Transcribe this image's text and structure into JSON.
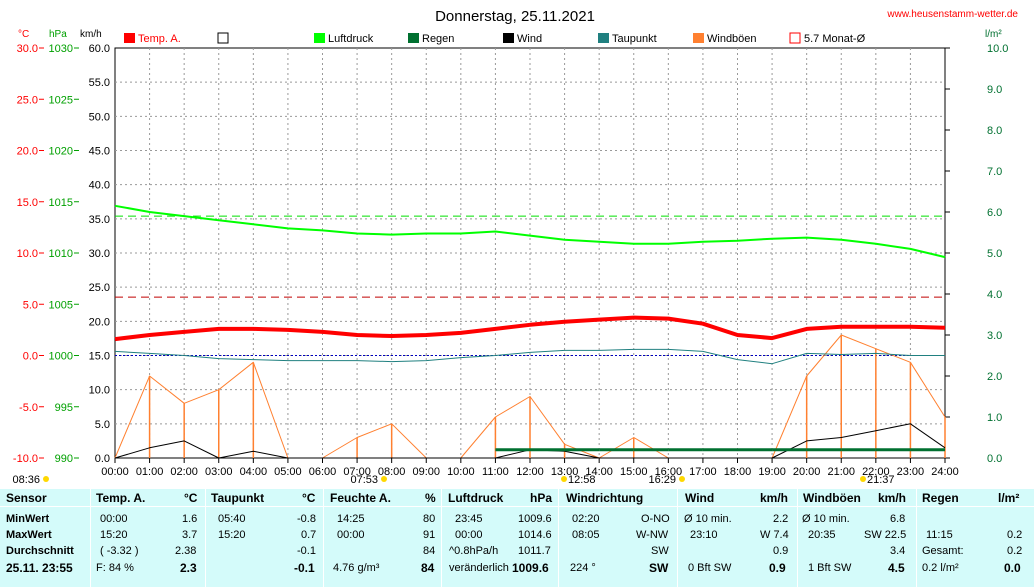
{
  "title": "Donnerstag, 25.11.2021",
  "site": "www.heusenstamm-wetter.de",
  "units": {
    "temp": "°C",
    "press": "hPa",
    "wind": "km/h",
    "rain": "l/m²"
  },
  "legend": [
    {
      "label": "Temp. A.",
      "color": "#ff0000"
    },
    {
      "label": "",
      "color": "#ffffff"
    },
    {
      "label": "Luftdruck",
      "color": "#00ff00"
    },
    {
      "label": "Regen",
      "color": "#007030"
    },
    {
      "label": "Wind",
      "color": "#000000"
    },
    {
      "label": "Taupunkt",
      "color": "#208080"
    },
    {
      "label": "Windböen",
      "color": "#ff8030"
    },
    {
      "label": "5.7 Monat-Ø",
      "color": "#ff0000"
    }
  ],
  "axes": {
    "temp_ticks": [
      "30.0",
      "25.0",
      "20.0",
      "15.0",
      "10.0",
      "5.0",
      "0.0",
      "-5.0",
      "-10.0"
    ],
    "press_ticks": [
      "1030",
      "1025",
      "1020",
      "1015",
      "1010",
      "1005",
      "1000",
      "995",
      "990"
    ],
    "wind_ticks": [
      "60.0",
      "55.0",
      "50.0",
      "45.0",
      "40.0",
      "35.0",
      "30.0",
      "25.0",
      "20.0",
      "15.0",
      "10.0",
      "5.0",
      "0.0"
    ],
    "rain_ticks": [
      "10.0",
      "9.0",
      "8.0",
      "7.0",
      "6.0",
      "5.0",
      "4.0",
      "3.0",
      "2.0",
      "1.0",
      "0.0"
    ],
    "time_ticks": [
      "00:00",
      "01:00",
      "02:00",
      "03:00",
      "04:00",
      "05:00",
      "06:00",
      "07:00",
      "08:00",
      "09:00",
      "10:00",
      "11:00",
      "12:00",
      "13:00",
      "14:00",
      "15:00",
      "16:00",
      "17:00",
      "18:00",
      "19:00",
      "20:00",
      "21:00",
      "22:00",
      "23:00",
      "24:00"
    ]
  },
  "markers": [
    {
      "time": "08:36"
    },
    {
      "time": "07:53"
    },
    {
      "time": "12:58"
    },
    {
      "time": "16:29"
    },
    {
      "time": "21:37"
    }
  ],
  "chart_data": {
    "type": "line",
    "title": "Donnerstag, 25.11.2021",
    "x_hours": [
      0,
      1,
      2,
      3,
      4,
      5,
      6,
      7,
      8,
      9,
      10,
      11,
      12,
      13,
      14,
      15,
      16,
      17,
      18,
      19,
      20,
      21,
      22,
      23,
      24
    ],
    "xlim": [
      0,
      24
    ],
    "temp_ylim": [
      -10,
      30
    ],
    "press_ylim": [
      990,
      1030
    ],
    "wind_ylim": [
      0,
      60
    ],
    "rain_ylim": [
      0,
      10
    ],
    "series": [
      {
        "name": "Temp. A.",
        "unit": "°C",
        "color": "#ff0000",
        "values": [
          1.6,
          2.0,
          2.3,
          2.6,
          2.6,
          2.5,
          2.3,
          2.0,
          1.9,
          2.0,
          2.2,
          2.6,
          3.0,
          3.3,
          3.5,
          3.7,
          3.6,
          3.1,
          2.0,
          1.7,
          2.6,
          2.8,
          2.8,
          2.8,
          2.7
        ]
      },
      {
        "name": "Luftdruck",
        "unit": "hPa",
        "color": "#00ff00",
        "values": [
          1014.6,
          1014.0,
          1013.6,
          1013.2,
          1012.8,
          1012.4,
          1012.2,
          1011.9,
          1011.8,
          1011.9,
          1011.9,
          1012.1,
          1011.7,
          1011.3,
          1011.1,
          1010.9,
          1010.9,
          1011.1,
          1011.2,
          1011.4,
          1011.5,
          1011.3,
          1010.9,
          1010.4,
          1009.6
        ]
      },
      {
        "name": "Taupunkt",
        "unit": "°C",
        "color": "#208080",
        "values": [
          0.4,
          0.2,
          0.0,
          -0.3,
          -0.4,
          -0.5,
          -0.5,
          -0.5,
          -0.6,
          -0.5,
          -0.2,
          0.0,
          0.3,
          0.5,
          0.5,
          0.6,
          0.6,
          0.4,
          -0.4,
          -0.8,
          0.2,
          0.1,
          0.2,
          0.0,
          0.0
        ]
      },
      {
        "name": "Regen",
        "unit": "l/m²",
        "color": "#007030",
        "values": [
          0,
          0,
          0,
          0,
          0,
          0,
          0,
          0,
          0,
          0,
          0,
          0,
          0.2,
          0.2,
          0.2,
          0.2,
          0.2,
          0.2,
          0.2,
          0.2,
          0.2,
          0.2,
          0.2,
          0.2,
          0.2
        ]
      },
      {
        "name": "Wind",
        "unit": "km/h",
        "color": "#000000",
        "values": [
          0,
          1.5,
          2.5,
          0,
          1.0,
          0,
          0,
          0,
          0,
          0,
          0,
          0,
          1.2,
          1.0,
          0,
          0,
          0,
          0,
          0,
          0,
          2.5,
          3.0,
          4.0,
          5.0,
          1.5
        ]
      },
      {
        "name": "Windböen",
        "unit": "km/h",
        "color": "#ff8030",
        "values": [
          0,
          12,
          8,
          10,
          14,
          0,
          0,
          3,
          5,
          0,
          0,
          6,
          9,
          2,
          0,
          3,
          0,
          0,
          0,
          0,
          12,
          18,
          16,
          14,
          6
        ]
      }
    ],
    "monthly_avg_temp": 5.7,
    "monthly_avg_press": 1013.6
  },
  "stats": {
    "row_labels": [
      "Sensor",
      "MinWert",
      "MaxWert",
      "Durchschnitt",
      "25.11. 23:55"
    ],
    "temp": {
      "header": "Temp. A.",
      "unit": "°C",
      "min_time": "00:00",
      "min": "1.6",
      "max_time": "15:20",
      "max": "3.7",
      "avg_note": "( -3.32 )",
      "avg": "2.38",
      "cur_note": "F: 84 %",
      "cur": "2.3"
    },
    "dew": {
      "header": "Taupunkt",
      "unit": "°C",
      "min_time": "05:40",
      "min": "-0.8",
      "max_time": "15:20",
      "max": "0.7",
      "avg": "-0.1",
      "cur": "-0.1"
    },
    "hum": {
      "header": "Feuchte A.",
      "unit": "%",
      "min_time": "14:25",
      "min": "80",
      "max_time": "00:00",
      "max": "91",
      "avg": "84",
      "cur_note": "4.76 g/m³",
      "cur": "84"
    },
    "press": {
      "header": "Luftdruck",
      "unit": "hPa",
      "min_time": "23:45",
      "min": "1009.6",
      "max_time": "00:00",
      "max": "1014.6",
      "avg_note": "^0.8hPa/h",
      "avg": "1011.7",
      "cur_note": "veränderlich",
      "cur": "1009.6"
    },
    "dir": {
      "header": "Windrichtung",
      "min_time": "02:20",
      "min": "O-NO",
      "max_time": "08:05",
      "max": "W-NW",
      "avg": "SW",
      "cur_note": "224 °",
      "cur": "SW"
    },
    "wind": {
      "header": "Wind",
      "unit": "km/h",
      "min_time": "Ø 10 min.",
      "min": "2.2",
      "max_time": "23:10",
      "max": "W 7.4",
      "avg": "0.9",
      "cur_note": "0 Bft SW",
      "cur": "0.9"
    },
    "gust": {
      "header": "Windböen",
      "unit": "km/h",
      "min_time": "Ø 10 min.",
      "min": "6.8",
      "max_time": "20:35",
      "max": "SW 22.5",
      "avg": "3.4",
      "cur_note": "1 Bft SW",
      "cur": "4.5"
    },
    "rain": {
      "header": "Regen",
      "unit": "l/m²",
      "max_time": "11:15",
      "max": "0.2",
      "avg_note": "Gesamt:",
      "avg": "0.2",
      "cur_note": "0.2 l/m²",
      "cur": "0.0"
    }
  }
}
